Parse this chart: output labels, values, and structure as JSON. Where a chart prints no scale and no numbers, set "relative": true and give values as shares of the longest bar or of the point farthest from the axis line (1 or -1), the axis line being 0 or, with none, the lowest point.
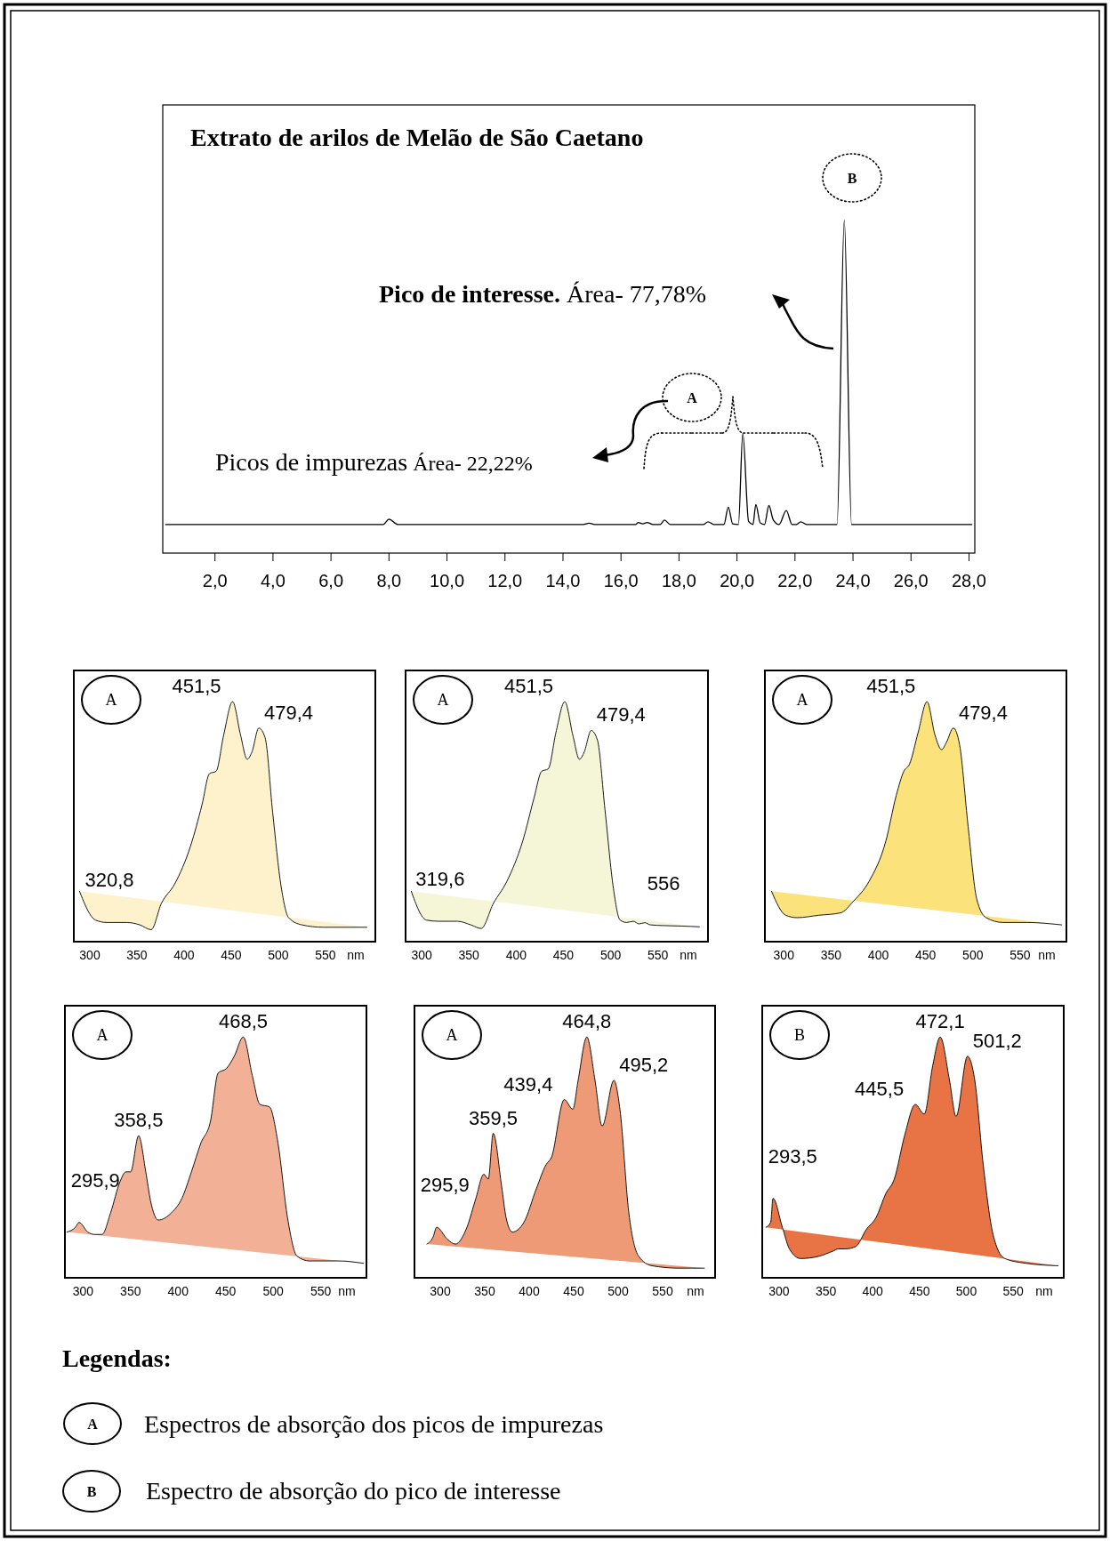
{
  "chart_data": [
    {
      "type": "line",
      "title": "Extrato de arilos de Melão de São Caetano",
      "relative": true,
      "xlim": [
        0.2,
        28.2
      ],
      "xticks": [
        {
          "value": 2,
          "label": "2,0"
        },
        {
          "value": 4,
          "label": "4,0"
        },
        {
          "value": 6,
          "label": "6,0"
        },
        {
          "value": 8,
          "label": "8,0"
        },
        {
          "value": 10,
          "label": "10,0"
        },
        {
          "value": 12,
          "label": "12,0"
        },
        {
          "value": 14,
          "label": "14,0"
        },
        {
          "value": 16,
          "label": "16,0"
        },
        {
          "value": 18,
          "label": "18,0"
        },
        {
          "value": 20,
          "label": "20,0"
        },
        {
          "value": 22,
          "label": "22,0"
        },
        {
          "value": 24,
          "label": "24,0"
        },
        {
          "value": 26,
          "label": "26,0"
        },
        {
          "value": 28,
          "label": "28,0"
        }
      ],
      "x": [
        0.3,
        7.8,
        8.0,
        8.3,
        14.7,
        14.9,
        15.1,
        16.5,
        16.6,
        16.75,
        16.9,
        17.1,
        17.35,
        17.5,
        17.7,
        18.85,
        19.0,
        19.2,
        19.55,
        19.7,
        19.85,
        20.05,
        20.2,
        20.4,
        20.55,
        20.65,
        20.8,
        20.95,
        21.1,
        21.25,
        21.45,
        21.7,
        21.9,
        22.05,
        22.2,
        22.4,
        23.45,
        23.7,
        23.95,
        28.1
      ],
      "series": [
        {
          "color": "#000000",
          "values": [
            0.086,
            0.086,
            0.102,
            0.086,
            0.086,
            0.09,
            0.086,
            0.086,
            0.092,
            0.088,
            0.092,
            0.086,
            0.086,
            0.099,
            0.086,
            0.086,
            0.094,
            0.086,
            0.086,
            0.138,
            0.088,
            0.086,
            0.36,
            0.095,
            0.086,
            0.146,
            0.091,
            0.086,
            0.143,
            0.1,
            0.086,
            0.128,
            0.086,
            0.086,
            0.094,
            0.086,
            0.086,
            1,
            0.086,
            0.086
          ]
        }
      ],
      "annotations": [
        "B",
        "Pico de interesse.",
        "Área- 77,78%",
        "A",
        "Picos de impurezas",
        "Área- 22,22%"
      ]
    },
    {
      "type": "area",
      "relative": true,
      "xlim": [
        283,
        603
      ],
      "xticks": [
        300,
        350,
        400,
        450,
        500,
        550
      ],
      "xlabel": "nm",
      "x": [
        289,
        306,
        318,
        339,
        353,
        365,
        376,
        390,
        407,
        419,
        427,
        434,
        442,
        451.5,
        460,
        467,
        472,
        479.4,
        486,
        494,
        503,
        511,
        525,
        548,
        594
      ],
      "series": [
        {
          "color": "#fdf2cc",
          "values": [
            0.21,
            0.09,
            0.08,
            0.08,
            0.07,
            0.05,
            0.16,
            0.24,
            0.4,
            0.57,
            0.7,
            0.71,
            0.86,
            1,
            0.86,
            0.76,
            0.79,
            0.89,
            0.85,
            0.54,
            0.23,
            0.1,
            0.07,
            0.06,
            0.06
          ]
        }
      ],
      "annotations": [
        "A",
        {
          "text": "451,5",
          "x": 451.5,
          "y": 1
        },
        {
          "text": "479,4",
          "x": 479.4,
          "y": 0.89
        },
        {
          "text": "320,8",
          "x": 320.8,
          "y": 0.08
        }
      ]
    },
    {
      "type": "area",
      "relative": true,
      "xlim": [
        283,
        603
      ],
      "xticks": [
        300,
        350,
        400,
        450,
        500,
        550
      ],
      "xlabel": "nm",
      "x": [
        289,
        305,
        318,
        338,
        352,
        363,
        376,
        390,
        407,
        419,
        427,
        434,
        442,
        451.5,
        460,
        467,
        472,
        479.4,
        486,
        494,
        503,
        510,
        517,
        524,
        530,
        536,
        542,
        556,
        575,
        594
      ],
      "series": [
        {
          "color": "#f5f5d7",
          "values": [
            0.21,
            0.09,
            0.085,
            0.085,
            0.07,
            0.055,
            0.16,
            0.25,
            0.42,
            0.6,
            0.71,
            0.72,
            0.87,
            1,
            0.86,
            0.76,
            0.79,
            0.88,
            0.84,
            0.55,
            0.22,
            0.09,
            0.08,
            0.085,
            0.074,
            0.079,
            0.07,
            0.067,
            0.065,
            0.062
          ]
        }
      ],
      "annotations": [
        "A",
        {
          "text": "451,5",
          "x": 451.5,
          "y": 1
        },
        {
          "text": "479,4",
          "x": 479.4,
          "y": 0.88
        },
        {
          "text": "319,6",
          "x": 319.6,
          "y": 0.085
        },
        {
          "text": "556",
          "x": 556,
          "y": 0.067
        }
      ]
    },
    {
      "type": "area",
      "relative": true,
      "xlim": [
        280,
        599
      ],
      "xticks": [
        300,
        350,
        400,
        450,
        500,
        550
      ],
      "xlabel": "nm",
      "x": [
        287,
        302,
        314,
        337,
        360,
        374,
        390,
        408,
        419,
        427,
        433,
        442,
        451.5,
        460,
        467,
        472,
        479.4,
        486,
        495,
        504,
        514,
        532,
        557,
        594
      ],
      "series": [
        {
          "color": "#fce27a",
          "values": [
            0.21,
            0.11,
            0.1,
            0.11,
            0.12,
            0.17,
            0.25,
            0.42,
            0.61,
            0.71,
            0.74,
            0.87,
            1,
            0.86,
            0.8,
            0.83,
            0.89,
            0.82,
            0.48,
            0.18,
            0.1,
            0.08,
            0.08,
            0.07
          ]
        }
      ],
      "annotations": [
        "A",
        {
          "text": "451,5",
          "x": 451.5,
          "y": 1
        },
        {
          "text": "479,4",
          "x": 479.4,
          "y": 0.89
        }
      ]
    },
    {
      "type": "area",
      "relative": true,
      "xlim": [
        281,
        598
      ],
      "xticks": [
        300,
        350,
        400,
        450,
        500,
        550
      ],
      "xlabel": "nm",
      "x": [
        283,
        292,
        295.9,
        305,
        312,
        320,
        329,
        339,
        345,
        350,
        358.5,
        366,
        371,
        379,
        393,
        404,
        414,
        424,
        434,
        442,
        451,
        459,
        468.5,
        478,
        486,
        496,
        505,
        515,
        525,
        538,
        569,
        595
      ],
      "series": [
        {
          "color": "#f2b196",
          "values": [
            0.19,
            0.21,
            0.23,
            0.19,
            0.18,
            0.18,
            0.27,
            0.4,
            0.44,
            0.44,
            0.59,
            0.44,
            0.32,
            0.24,
            0.27,
            0.33,
            0.44,
            0.56,
            0.65,
            0.85,
            0.87,
            0.92,
            1,
            0.84,
            0.72,
            0.71,
            0.56,
            0.25,
            0.09,
            0.07,
            0.07,
            0.06
          ]
        }
      ],
      "annotations": [
        "A",
        {
          "text": "468,5",
          "x": 468.5,
          "y": 1
        },
        {
          "text": "358,5",
          "x": 358.5,
          "y": 0.59
        },
        {
          "text": "295,9",
          "x": 295.9,
          "y": 0.23
        }
      ]
    },
    {
      "type": "area",
      "relative": true,
      "xlim": [
        271,
        609
      ],
      "xticks": [
        300,
        350,
        400,
        450,
        500,
        550
      ],
      "xlabel": "nm",
      "x": [
        285,
        292,
        295.9,
        308,
        317,
        330,
        340,
        349,
        354,
        359.5,
        369,
        374,
        381,
        394,
        408,
        419,
        425,
        439.4,
        449,
        455,
        464.8,
        474,
        482,
        495.2,
        502,
        512,
        523,
        538,
        568,
        597
      ],
      "series": [
        {
          "color": "#ee9a76",
          "values": [
            0.14,
            0.17,
            0.21,
            0.16,
            0.14,
            0.21,
            0.33,
            0.43,
            0.41,
            0.6,
            0.38,
            0.25,
            0.19,
            0.23,
            0.37,
            0.47,
            0.5,
            0.74,
            0.7,
            0.82,
            1,
            0.82,
            0.63,
            0.82,
            0.7,
            0.27,
            0.09,
            0.05,
            0.04,
            0.04
          ]
        }
      ],
      "annotations": [
        "A",
        {
          "text": "464,8",
          "x": 464.8,
          "y": 1
        },
        {
          "text": "439,4",
          "x": 439.4,
          "y": 0.74
        },
        {
          "text": "495,2",
          "x": 495.2,
          "y": 0.82
        },
        {
          "text": "359,5",
          "x": 359.5,
          "y": 0.6
        },
        {
          "text": "295,9",
          "x": 295.9,
          "y": 0.21
        }
      ]
    },
    {
      "type": "area",
      "relative": true,
      "xlim": [
        282,
        604
      ],
      "xticks": [
        300,
        350,
        400,
        450,
        500,
        550
      ],
      "xlabel": "nm",
      "x": [
        286,
        291,
        293.5,
        303.5,
        311,
        323,
        343,
        357,
        363.5,
        371,
        382,
        393,
        403.5,
        414,
        423,
        434,
        445.5,
        455,
        464,
        472.1,
        482,
        489,
        501.2,
        509,
        518,
        528.5,
        541,
        564,
        598
      ],
      "series": [
        {
          "color": "#e87446",
          "values": [
            0.21,
            0.23,
            0.33,
            0.21,
            0.12,
            0.08,
            0.09,
            0.11,
            0.12,
            0.12,
            0.13,
            0.2,
            0.25,
            0.35,
            0.41,
            0.59,
            0.72,
            0.68,
            0.88,
            1,
            0.82,
            0.67,
            0.92,
            0.82,
            0.47,
            0.18,
            0.08,
            0.06,
            0.05
          ]
        }
      ],
      "annotations": [
        "B",
        {
          "text": "472,1",
          "x": 472.1,
          "y": 1
        },
        {
          "text": "445,5",
          "x": 445.5,
          "y": 0.72
        },
        {
          "text": "501,2",
          "x": 501.2,
          "y": 0.92
        },
        {
          "text": "293,5",
          "x": 293.5,
          "y": 0.33
        }
      ]
    },
    {
      "type": "other",
      "title": "Legendas:",
      "annotations": [
        "A",
        "Espectros de absorção dos picos de impurezas",
        "B",
        "Espectro de absorção do pico de interesse"
      ]
    }
  ]
}
